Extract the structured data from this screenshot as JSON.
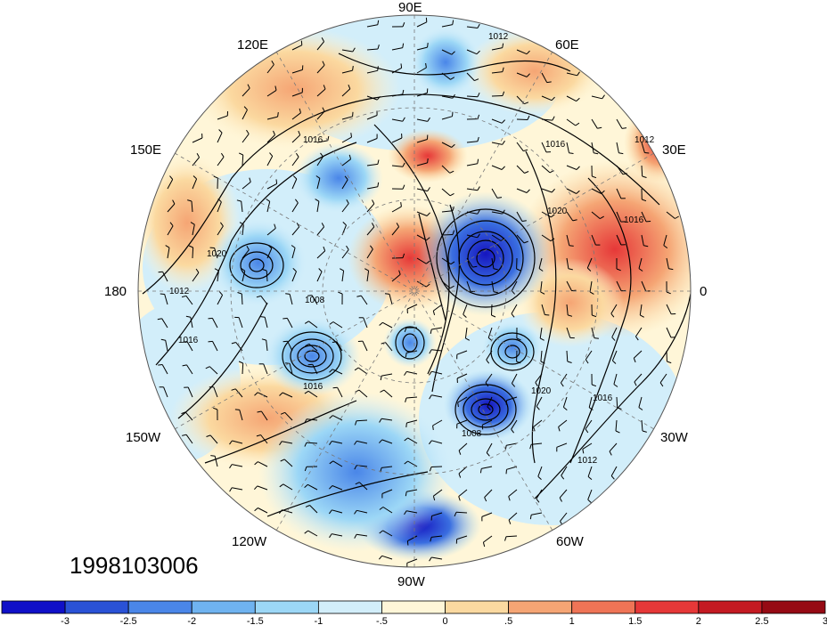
{
  "map": {
    "timestamp": "1998103006",
    "projection": "north-polar-stereographic",
    "longitude_labels": [
      {
        "id": "90e",
        "text": "90E"
      },
      {
        "id": "60e",
        "text": "60E"
      },
      {
        "id": "30e",
        "text": "30E"
      },
      {
        "id": "0",
        "text": "0"
      },
      {
        "id": "30w",
        "text": "30W"
      },
      {
        "id": "60w",
        "text": "60W"
      },
      {
        "id": "90w",
        "text": "90W"
      },
      {
        "id": "120w",
        "text": "120W"
      },
      {
        "id": "150w",
        "text": "150W"
      },
      {
        "id": "180",
        "text": "180"
      },
      {
        "id": "150e",
        "text": "150E"
      },
      {
        "id": "120e",
        "text": "120E"
      }
    ],
    "contour_labels": [
      "1012",
      "1016",
      "1020",
      "1012",
      "1016",
      "1008",
      "1020",
      "1016",
      "1012",
      "1016",
      "1008",
      "1016",
      "1012",
      "1020",
      "1016"
    ]
  },
  "colorbar": {
    "colors": [
      "#1010c8",
      "#2a52d6",
      "#4a86e8",
      "#6fb3f0",
      "#9cd7f6",
      "#d2eefa",
      "#fff6d8",
      "#fbd9a0",
      "#f5a574",
      "#ef7456",
      "#e63838",
      "#c41a22",
      "#960a14"
    ],
    "labels": [
      "-3",
      "-2.5",
      "-2",
      "-1.5",
      "-1",
      "-.5",
      "0",
      ".5",
      "1",
      "1.5",
      "2",
      "2.5",
      "3"
    ]
  }
}
